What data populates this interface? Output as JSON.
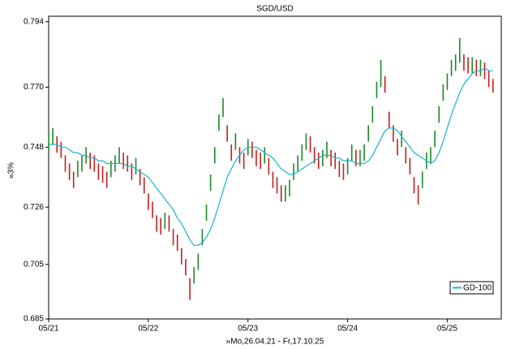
{
  "chart_data": {
    "type": "ohlc",
    "title": "SGD/USD",
    "y_label": "»3%",
    "x_label": "»Mo,26.04.21 - Fr,17.10.25",
    "xlim": [
      0,
      109
    ],
    "ylim": [
      0.685,
      0.796
    ],
    "xticks": [
      {
        "value": 0,
        "label": "05/21"
      },
      {
        "value": 24,
        "label": "05/22"
      },
      {
        "value": 48,
        "label": "05/23"
      },
      {
        "value": 72,
        "label": "05/24"
      },
      {
        "value": 96,
        "label": "05/25"
      }
    ],
    "yticks": [
      0.685,
      0.705,
      0.726,
      0.748,
      {
        "value": 0.77,
        "label": "0.770"
      },
      0.794
    ],
    "up_color": "#1a8a2a",
    "down_color": "#c0201e",
    "high": [
      0.753,
      0.755,
      0.752,
      0.75,
      0.745,
      0.742,
      0.739,
      0.743,
      0.745,
      0.748,
      0.746,
      0.745,
      0.742,
      0.741,
      0.739,
      0.743,
      0.745,
      0.748,
      0.746,
      0.745,
      0.742,
      0.744,
      0.74,
      0.737,
      0.731,
      0.728,
      0.723,
      0.722,
      0.724,
      0.723,
      0.718,
      0.716,
      0.711,
      0.707,
      0.7,
      0.704,
      0.709,
      0.718,
      0.727,
      0.738,
      0.748,
      0.76,
      0.766,
      0.756,
      0.749,
      0.753,
      0.748,
      0.746,
      0.751,
      0.75,
      0.747,
      0.746,
      0.748,
      0.744,
      0.739,
      0.737,
      0.734,
      0.734,
      0.736,
      0.742,
      0.745,
      0.749,
      0.753,
      0.752,
      0.748,
      0.746,
      0.747,
      0.75,
      0.747,
      0.746,
      0.743,
      0.742,
      0.744,
      0.749,
      0.747,
      0.747,
      0.749,
      0.756,
      0.763,
      0.772,
      0.78,
      0.774,
      0.761,
      0.756,
      0.751,
      0.754,
      0.748,
      0.744,
      0.737,
      0.734,
      0.739,
      0.746,
      0.748,
      0.754,
      0.763,
      0.771,
      0.775,
      0.78,
      0.782,
      0.788,
      0.782,
      0.781,
      0.781,
      0.78,
      0.78,
      0.779,
      0.776,
      0.773
    ],
    "low": [
      0.747,
      0.749,
      0.746,
      0.744,
      0.739,
      0.736,
      0.733,
      0.737,
      0.739,
      0.742,
      0.74,
      0.739,
      0.736,
      0.735,
      0.733,
      0.737,
      0.739,
      0.742,
      0.74,
      0.739,
      0.736,
      0.738,
      0.734,
      0.731,
      0.725,
      0.722,
      0.717,
      0.716,
      0.718,
      0.717,
      0.712,
      0.71,
      0.705,
      0.701,
      0.692,
      0.698,
      0.703,
      0.712,
      0.721,
      0.732,
      0.742,
      0.754,
      0.759,
      0.75,
      0.743,
      0.747,
      0.742,
      0.74,
      0.745,
      0.744,
      0.741,
      0.74,
      0.742,
      0.738,
      0.733,
      0.731,
      0.728,
      0.728,
      0.73,
      0.736,
      0.739,
      0.743,
      0.747,
      0.746,
      0.742,
      0.74,
      0.741,
      0.744,
      0.741,
      0.74,
      0.737,
      0.736,
      0.738,
      0.743,
      0.741,
      0.741,
      0.743,
      0.75,
      0.757,
      0.766,
      0.77,
      0.768,
      0.755,
      0.75,
      0.745,
      0.748,
      0.742,
      0.738,
      0.731,
      0.727,
      0.733,
      0.74,
      0.742,
      0.748,
      0.757,
      0.765,
      0.769,
      0.774,
      0.776,
      0.779,
      0.776,
      0.775,
      0.775,
      0.774,
      0.774,
      0.773,
      0.77,
      0.768
    ],
    "series": [
      {
        "name": "GD-100",
        "color": "#19b3cf",
        "values": [
          0.749,
          0.749,
          0.749,
          0.748,
          0.748,
          0.747,
          0.746,
          0.746,
          0.745,
          0.745,
          0.744,
          0.744,
          0.743,
          0.743,
          0.742,
          0.742,
          0.742,
          0.742,
          0.742,
          0.741,
          0.741,
          0.74,
          0.739,
          0.738,
          0.737,
          0.735,
          0.733,
          0.731,
          0.729,
          0.727,
          0.725,
          0.722,
          0.72,
          0.717,
          0.714,
          0.712,
          0.712,
          0.713,
          0.715,
          0.718,
          0.722,
          0.727,
          0.732,
          0.737,
          0.74,
          0.743,
          0.745,
          0.747,
          0.748,
          0.748,
          0.748,
          0.747,
          0.746,
          0.745,
          0.744,
          0.742,
          0.74,
          0.739,
          0.738,
          0.738,
          0.739,
          0.74,
          0.741,
          0.742,
          0.743,
          0.744,
          0.745,
          0.745,
          0.745,
          0.744,
          0.744,
          0.743,
          0.743,
          0.743,
          0.742,
          0.742,
          0.742,
          0.743,
          0.745,
          0.748,
          0.751,
          0.754,
          0.755,
          0.755,
          0.754,
          0.752,
          0.75,
          0.748,
          0.746,
          0.745,
          0.744,
          0.743,
          0.742,
          0.743,
          0.746,
          0.75,
          0.755,
          0.76,
          0.764,
          0.768,
          0.771,
          0.773,
          0.775,
          0.776,
          0.776,
          0.777,
          0.776,
          0.776
        ]
      }
    ],
    "legend": "lower right"
  }
}
